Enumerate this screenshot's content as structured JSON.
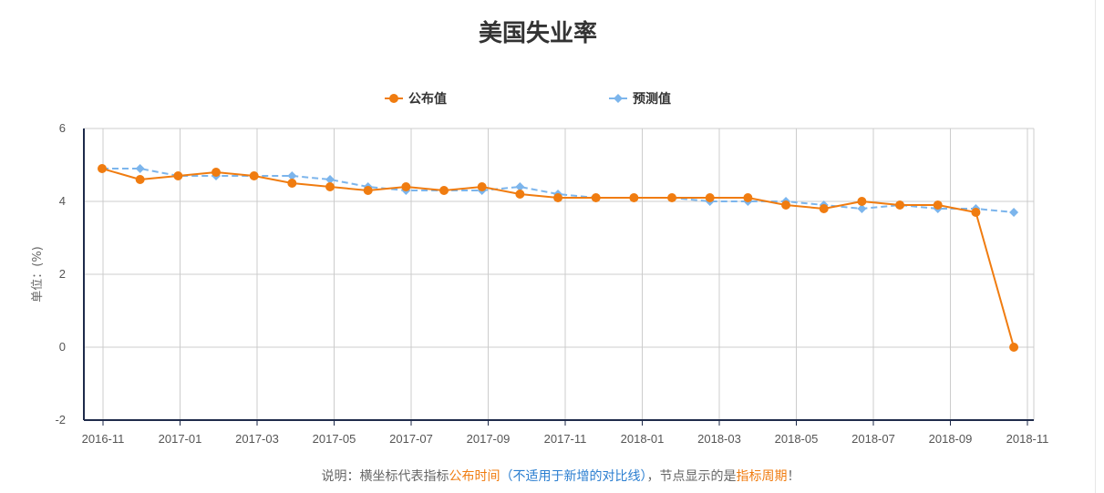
{
  "chart_data": {
    "type": "line",
    "title": "美国失业率",
    "ylabel": "单位：(%)",
    "xlabel": "",
    "ylim": [
      -2,
      6
    ],
    "yticks": [
      -2,
      0,
      2,
      4,
      6
    ],
    "grid": true,
    "legend_position": "top-center",
    "x_tick_labels": [
      "2016-11",
      "2017-01",
      "2017-03",
      "2017-05",
      "2017-07",
      "2017-09",
      "2017-11",
      "2018-01",
      "2018-03",
      "2018-05",
      "2018-07",
      "2018-09",
      "2018-11"
    ],
    "series": [
      {
        "name": "公布值",
        "color": "#f07c10",
        "style": "solid",
        "marker": "circle",
        "values": [
          4.9,
          4.6,
          4.7,
          4.8,
          4.7,
          4.5,
          4.4,
          4.3,
          4.4,
          4.3,
          4.4,
          4.2,
          4.1,
          4.1,
          4.1,
          4.1,
          4.1,
          4.1,
          3.9,
          3.8,
          4.0,
          3.9,
          3.9,
          3.7,
          0.0
        ]
      },
      {
        "name": "预测值",
        "color": "#7cb5ec",
        "style": "dashed",
        "marker": "diamond",
        "values": [
          4.9,
          4.9,
          4.7,
          4.7,
          4.7,
          4.7,
          4.6,
          4.4,
          4.3,
          4.3,
          4.3,
          4.4,
          4.2,
          4.1,
          4.1,
          4.1,
          4.0,
          4.0,
          4.0,
          3.9,
          3.8,
          3.9,
          3.8,
          3.8,
          3.7
        ]
      }
    ]
  },
  "note": {
    "prefix": "说明：横坐标代表指标",
    "highlight1": "公布时间",
    "paren_open": "（",
    "highlight2": "不适用于新增的对比线",
    "paren_close": "）",
    "middle": "，节点显示的是",
    "highlight3": "指标周期",
    "suffix": "！"
  }
}
